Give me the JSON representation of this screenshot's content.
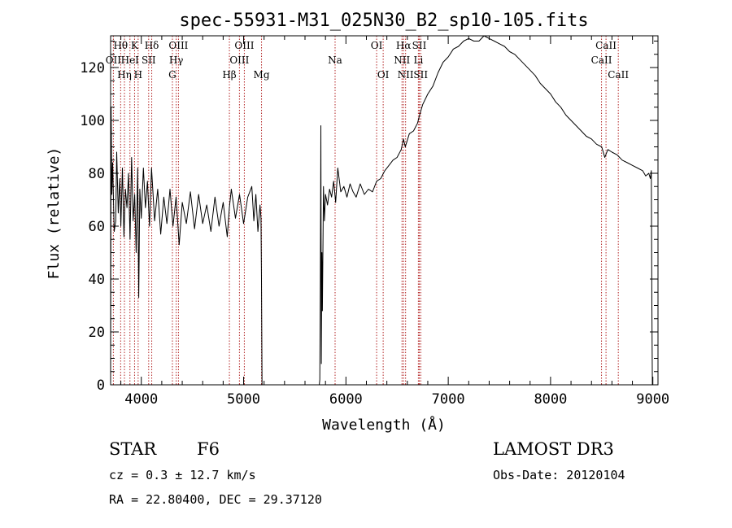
{
  "chart_data": {
    "type": "line",
    "title": "spec-55931-M31_025N30_B2_sp10-105.fits",
    "xlabel": "Wavelength (Å)",
    "ylabel": "Flux (relative)",
    "xlim": [
      3700,
      9050
    ],
    "ylim": [
      0,
      132
    ],
    "x_ticks": [
      4000,
      5000,
      6000,
      7000,
      8000,
      9000
    ],
    "x_tick_labels": [
      "4000",
      "5000",
      "6000",
      "7000",
      "8000",
      "9000"
    ],
    "y_ticks": [
      0,
      20,
      40,
      60,
      80,
      100,
      120
    ],
    "y_tick_labels": [
      "0",
      "20",
      "40",
      "60",
      "80",
      "100",
      "120"
    ],
    "grid": false,
    "series": [
      {
        "name": "spectrum",
        "color": "#000000",
        "segments": [
          {
            "x": [
              3700,
              3705,
              3712,
              3720,
              3735,
              3750,
              3760,
              3775,
              3790,
              3800,
              3815,
              3830,
              3845,
              3860,
              3875,
              3890,
              3905,
              3920,
              3935,
              3950,
              3965,
              3975,
              3985,
              4000,
              4020,
              4040,
              4060,
              4080,
              4100,
              4130,
              4160,
              4190,
              4220,
              4250,
              4280,
              4310,
              4340,
              4370,
              4400,
              4440,
              4480,
              4520,
              4560,
              4600,
              4640,
              4680,
              4720,
              4760,
              4800,
              4840,
              4861,
              4880,
              4920,
              4960,
              5000,
              5040,
              5080,
              5100,
              5120,
              5140,
              5160,
              5170,
              5175,
              5180
            ],
            "y": [
              0,
              105,
              72,
              84,
              58,
              62,
              88,
              65,
              78,
              60,
              82,
              56,
              74,
              67,
              80,
              55,
              86,
              62,
              72,
              50,
              82,
              33,
              74,
              63,
              82,
              67,
              77,
              60,
              82,
              62,
              74,
              57,
              71,
              61,
              74,
              60,
              71,
              53,
              69,
              61,
              73,
              59,
              72,
              61,
              68,
              58,
              71,
              60,
              69,
              56,
              67,
              74,
              63,
              72,
              61,
              71,
              75,
              62,
              72,
              58,
              68,
              63,
              40,
              0
            ]
          },
          {
            "x": [
              5740,
              5745,
              5750,
              5755,
              5760,
              5765,
              5770,
              5780,
              5790,
              5800,
              5820,
              5840,
              5860,
              5880,
              5900,
              5920,
              5950,
              5980,
              6010,
              6040,
              6070,
              6100,
              6140,
              6180,
              6220,
              6260,
              6300,
              6340,
              6380,
              6420,
              6460,
              6500,
              6540,
              6563,
              6580,
              6620,
              6660,
              6700,
              6720,
              6750,
              6800,
              6850,
              6900,
              6950,
              7000,
              7050,
              7100,
              7150,
              7200,
              7250,
              7300,
              7350,
              7400,
              7450,
              7500,
              7550,
              7600,
              7650,
              7700,
              7750,
              7800,
              7850,
              7900,
              7950,
              8000,
              8050,
              8100,
              8150,
              8200,
              8250,
              8300,
              8350,
              8400,
              8450,
              8500,
              8530,
              8560,
              8600,
              8650,
              8700,
              8750,
              8800,
              8850,
              8900,
              8930,
              8960,
              8975,
              8985,
              8990,
              8995
            ],
            "y": [
              0,
              2,
              40,
              98,
              8,
              50,
              28,
              75,
              62,
              72,
              68,
              74,
              71,
              77,
              69,
              82,
              73,
              75,
              71,
              76,
              73,
              71,
              76,
              72,
              74,
              73,
              77,
              78,
              81,
              83,
              85,
              86,
              89,
              93,
              90,
              95,
              96,
              99,
              102,
              106,
              110,
              113,
              118,
              122,
              124,
              127,
              128,
              130,
              131,
              130,
              130,
              132,
              131,
              130,
              129,
              128,
              126,
              125,
              123,
              121,
              119,
              117,
              114,
              112,
              110,
              107,
              105,
              102,
              100,
              98,
              96,
              94,
              93,
              91,
              90,
              86,
              89,
              88,
              87,
              85,
              84,
              83,
              82,
              81,
              79,
              80,
              78,
              81,
              30,
              0
            ]
          }
        ]
      }
    ],
    "spectral_lines": [
      {
        "label": "Hθ",
        "wavelength": 3798,
        "row": 0
      },
      {
        "label": "OII",
        "wavelength": 3727,
        "row": 1
      },
      {
        "label": "Hη",
        "wavelength": 3835,
        "row": 2
      },
      {
        "label": "K",
        "wavelength": 3934,
        "row": 0
      },
      {
        "label": "HeI",
        "wavelength": 3889,
        "row": 1
      },
      {
        "label": "H",
        "wavelength": 3969,
        "row": 2
      },
      {
        "label": "Hδ",
        "wavelength": 4102,
        "row": 0
      },
      {
        "label": "SII",
        "wavelength": 4072,
        "row": 1
      },
      {
        "label": "OIII",
        "wavelength": 4363,
        "row": 0
      },
      {
        "label": "Hγ",
        "wavelength": 4341,
        "row": 1
      },
      {
        "label": "G",
        "wavelength": 4304,
        "row": 2
      },
      {
        "label": "OIII",
        "wavelength": 5007,
        "row": 0
      },
      {
        "label": "OIII",
        "wavelength": 4959,
        "row": 1
      },
      {
        "label": "Hβ",
        "wavelength": 4861,
        "row": 2
      },
      {
        "label": "Mg",
        "wavelength": 5175,
        "row": 2
      },
      {
        "label": "Na",
        "wavelength": 5894,
        "row": 1
      },
      {
        "label": "OI",
        "wavelength": 6300,
        "row": 0
      },
      {
        "label": "OI",
        "wavelength": 6364,
        "row": 2
      },
      {
        "label": "Hα",
        "wavelength": 6563,
        "row": 0
      },
      {
        "label": "NII",
        "wavelength": 6548,
        "row": 1
      },
      {
        "label": "NII",
        "wavelength": 6583,
        "row": 2
      },
      {
        "label": "SII",
        "wavelength": 6717,
        "row": 0
      },
      {
        "label": "Li",
        "wavelength": 6708,
        "row": 1
      },
      {
        "label": "SII",
        "wavelength": 6731,
        "row": 2
      },
      {
        "label": "CaII",
        "wavelength": 8542,
        "row": 0
      },
      {
        "label": "CaII",
        "wavelength": 8498,
        "row": 1
      },
      {
        "label": "CaII",
        "wavelength": 8662,
        "row": 2
      }
    ],
    "line_marker_color": "#b22222"
  },
  "info": {
    "object_class": "STAR",
    "subclass": "F6",
    "survey": "LAMOST DR3",
    "redshift": "cz = 0.3 ± 12.7 km/s",
    "obs_date": "Obs-Date: 20120104",
    "coordinates": "RA =  22.80400, DEC =  29.37120"
  }
}
